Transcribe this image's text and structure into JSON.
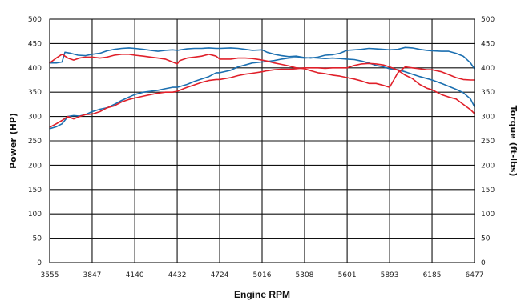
{
  "chart_data": {
    "type": "line",
    "xlabel": "Engine RPM",
    "ylabel_left": "Power (HP)",
    "ylabel_right": "Torque (ft-lbs)",
    "xlim": [
      3555,
      6477
    ],
    "ylim": [
      0,
      500
    ],
    "x_ticks": [
      "3555",
      "3847",
      "4140",
      "4432",
      "4724",
      "5016",
      "5308",
      "5601",
      "5893",
      "6185",
      "6477"
    ],
    "y_ticks": [
      "0",
      "50",
      "100",
      "150",
      "200",
      "250",
      "300",
      "350",
      "400",
      "450",
      "500"
    ],
    "grid": true,
    "colors": {
      "blue": "#1b6fb0",
      "red": "#e0202a"
    },
    "series": [
      {
        "color": "#1b6fb0",
        "role": "power",
        "x": [
          3555,
          3600,
          3640,
          3680,
          3720,
          3760,
          3800,
          3847,
          3900,
          3950,
          4000,
          4050,
          4100,
          4140,
          4200,
          4250,
          4300,
          4350,
          4400,
          4432,
          4500,
          4550,
          4600,
          4650,
          4700,
          4724,
          4800,
          4850,
          4900,
          4950,
          5016,
          5050,
          5100,
          5150,
          5200,
          5250,
          5308,
          5350,
          5400,
          5450,
          5500,
          5550,
          5601,
          5650,
          5700,
          5750,
          5800,
          5850,
          5893,
          5950,
          6000,
          6050,
          6100,
          6150,
          6185,
          6250,
          6300,
          6350,
          6400,
          6450,
          6477
        ],
        "y": [
          275,
          279,
          285,
          300,
          302,
          301,
          304,
          310,
          315,
          318,
          325,
          333,
          340,
          345,
          350,
          352,
          354,
          357,
          360,
          360,
          366,
          372,
          377,
          382,
          390,
          390,
          395,
          402,
          406,
          410,
          412,
          413,
          415,
          418,
          420,
          421,
          420,
          421,
          420,
          419,
          420,
          419,
          418,
          417,
          414,
          410,
          405,
          402,
          398,
          396,
          392,
          387,
          382,
          378,
          375,
          368,
          362,
          356,
          349,
          336,
          320
        ]
      },
      {
        "color": "#1b6fb0",
        "role": "torque",
        "x": [
          3555,
          3600,
          3640,
          3660,
          3700,
          3750,
          3800,
          3847,
          3900,
          3950,
          4000,
          4050,
          4100,
          4140,
          4200,
          4250,
          4300,
          4350,
          4400,
          4432,
          4500,
          4550,
          4600,
          4650,
          4700,
          4724,
          4800,
          4850,
          4900,
          4950,
          5016,
          5050,
          5100,
          5150,
          5200,
          5250,
          5308,
          5350,
          5400,
          5450,
          5500,
          5550,
          5601,
          5650,
          5700,
          5750,
          5800,
          5850,
          5893,
          5950,
          6000,
          6050,
          6100,
          6150,
          6185,
          6250,
          6300,
          6350,
          6400,
          6450,
          6477
        ],
        "y": [
          410,
          410,
          412,
          432,
          430,
          426,
          425,
          428,
          430,
          435,
          438,
          440,
          441,
          440,
          438,
          436,
          434,
          436,
          437,
          436,
          439,
          440,
          440,
          441,
          440,
          440,
          441,
          440,
          438,
          436,
          437,
          432,
          428,
          425,
          423,
          424,
          421,
          420,
          422,
          426,
          427,
          430,
          436,
          437,
          438,
          440,
          439,
          438,
          437,
          438,
          442,
          441,
          438,
          436,
          435,
          434,
          434,
          430,
          424,
          410,
          398
        ]
      },
      {
        "color": "#e0202a",
        "role": "power",
        "x": [
          3555,
          3600,
          3640,
          3680,
          3720,
          3760,
          3800,
          3847,
          3900,
          3950,
          4000,
          4050,
          4100,
          4140,
          4200,
          4250,
          4300,
          4350,
          4400,
          4432,
          4500,
          4550,
          4600,
          4650,
          4700,
          4724,
          4800,
          4850,
          4900,
          4950,
          5016,
          5050,
          5100,
          5150,
          5200,
          5250,
          5308,
          5350,
          5400,
          5450,
          5500,
          5550,
          5601,
          5650,
          5700,
          5750,
          5800,
          5850,
          5893,
          5950,
          6000,
          6050,
          6100,
          6150,
          6185,
          6250,
          6300,
          6350,
          6400,
          6450,
          6477
        ],
        "y": [
          278,
          285,
          292,
          300,
          295,
          300,
          304,
          305,
          310,
          318,
          322,
          330,
          335,
          338,
          342,
          345,
          348,
          350,
          350,
          352,
          360,
          365,
          370,
          374,
          376,
          376,
          380,
          384,
          387,
          389,
          392,
          394,
          396,
          397,
          397,
          398,
          400,
          400,
          400,
          399,
          400,
          400,
          400,
          405,
          408,
          409,
          408,
          406,
          402,
          395,
          385,
          378,
          366,
          358,
          355,
          345,
          340,
          336,
          325,
          314,
          306
        ]
      },
      {
        "color": "#e0202a",
        "role": "torque",
        "x": [
          3555,
          3600,
          3640,
          3680,
          3720,
          3760,
          3800,
          3847,
          3900,
          3950,
          4000,
          4050,
          4100,
          4140,
          4200,
          4250,
          4300,
          4350,
          4400,
          4432,
          4450,
          4500,
          4550,
          4600,
          4650,
          4700,
          4724,
          4800,
          4850,
          4900,
          4950,
          5016,
          5050,
          5100,
          5150,
          5200,
          5250,
          5308,
          5350,
          5400,
          5450,
          5500,
          5550,
          5601,
          5650,
          5700,
          5750,
          5800,
          5850,
          5893,
          5950,
          6000,
          6050,
          6100,
          6150,
          6185,
          6250,
          6300,
          6350,
          6400,
          6450,
          6477
        ],
        "y": [
          410,
          420,
          428,
          420,
          416,
          420,
          422,
          422,
          420,
          422,
          426,
          428,
          428,
          426,
          424,
          422,
          420,
          418,
          412,
          408,
          415,
          420,
          422,
          424,
          428,
          424,
          418,
          418,
          420,
          420,
          419,
          416,
          414,
          410,
          407,
          404,
          400,
          398,
          394,
          390,
          388,
          385,
          383,
          380,
          377,
          373,
          368,
          368,
          364,
          360,
          390,
          402,
          400,
          398,
          396,
          396,
          392,
          386,
          380,
          376,
          375,
          375
        ]
      }
    ]
  }
}
